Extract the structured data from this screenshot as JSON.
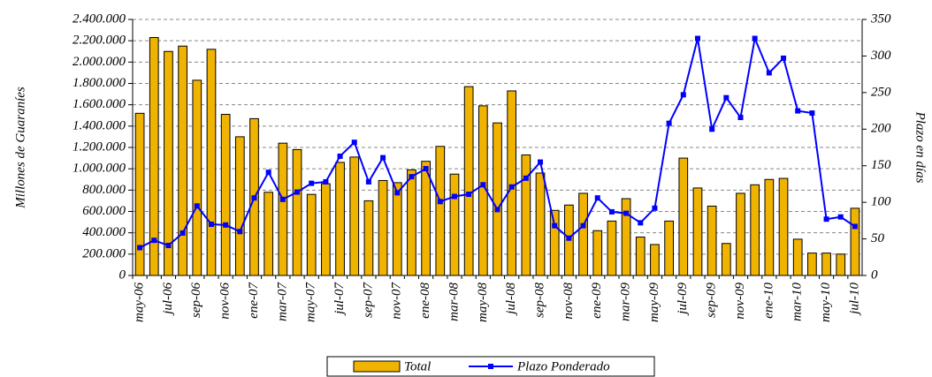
{
  "chart_data": {
    "type": "bar-line",
    "y_label": "Millones de Guaraníes",
    "y2_label": "Plazo en días",
    "categories": [
      "may-06",
      null,
      "jul-06",
      null,
      "sep-06",
      null,
      "nov-06",
      null,
      "ene-07",
      null,
      "mar-07",
      null,
      "may-07",
      null,
      "jul-07",
      null,
      "sep-07",
      null,
      "nov-07",
      null,
      "ene-08",
      null,
      "mar-08",
      null,
      "may-08",
      null,
      "jul-08",
      null,
      "sep-08",
      null,
      "nov-08",
      null,
      "ene-09",
      null,
      "mar-09",
      null,
      "may-09",
      null,
      "jul-09",
      null,
      "sep-09",
      null,
      "nov-09",
      null,
      "ene-10",
      null,
      "mar-10",
      null,
      "may-10",
      null,
      "jul-10"
    ],
    "series": [
      {
        "name": "Total",
        "color": "#f0b400",
        "values": [
          1520000,
          2230000,
          2100000,
          2150000,
          1830000,
          2120000,
          1510000,
          1300000,
          1470000,
          780000,
          1240000,
          1180000,
          760000,
          860000,
          1060000,
          1110000,
          700000,
          890000,
          870000,
          990000,
          1070000,
          1210000,
          950000,
          1770000,
          1590000,
          1430000,
          1730000,
          1130000,
          960000,
          610000,
          660000,
          770000,
          420000,
          510000,
          720000,
          360000,
          290000,
          510000,
          1100000,
          820000,
          650000,
          300000,
          770000,
          850000,
          900000,
          910000,
          340000,
          210000,
          210000,
          200000,
          630000
        ]
      },
      {
        "name": "Plazo Ponderado",
        "color": "#0000ff",
        "axis": "y2",
        "values": [
          38,
          48,
          41,
          58,
          95,
          70,
          69,
          60,
          106,
          141,
          104,
          114,
          126,
          128,
          163,
          182,
          128,
          161,
          113,
          135,
          146,
          101,
          108,
          111,
          124,
          90,
          121,
          133,
          155,
          68,
          51,
          68,
          106,
          87,
          85,
          72,
          92,
          208,
          247,
          324,
          200,
          243,
          216,
          324,
          277,
          297,
          225,
          222,
          77,
          80,
          67
        ]
      }
    ],
    "ylim": [
      0,
      2400000
    ],
    "yticks": [
      0,
      {
        "value": 200000,
        "label": "200.000"
      },
      {
        "value": 400000,
        "label": "400.000"
      },
      {
        "value": 600000,
        "label": "600.000"
      },
      {
        "value": 800000,
        "label": "800.000"
      },
      {
        "value": 1000000,
        "label": "1.000.000"
      },
      {
        "value": 1200000,
        "label": "1.200.000"
      },
      {
        "value": 1400000,
        "label": "1.400.000"
      },
      {
        "value": 1600000,
        "label": "1.600.000"
      },
      {
        "value": 1800000,
        "label": "1.800.000"
      },
      {
        "value": 2000000,
        "label": "2.000.000"
      },
      {
        "value": 2200000,
        "label": "2.200.000"
      },
      {
        "value": 2400000,
        "label": "2.400.000"
      }
    ],
    "y2lim": [
      0,
      350
    ],
    "y2ticks": [
      0,
      50,
      100,
      150,
      200,
      250,
      300,
      350
    ],
    "grid": true
  }
}
